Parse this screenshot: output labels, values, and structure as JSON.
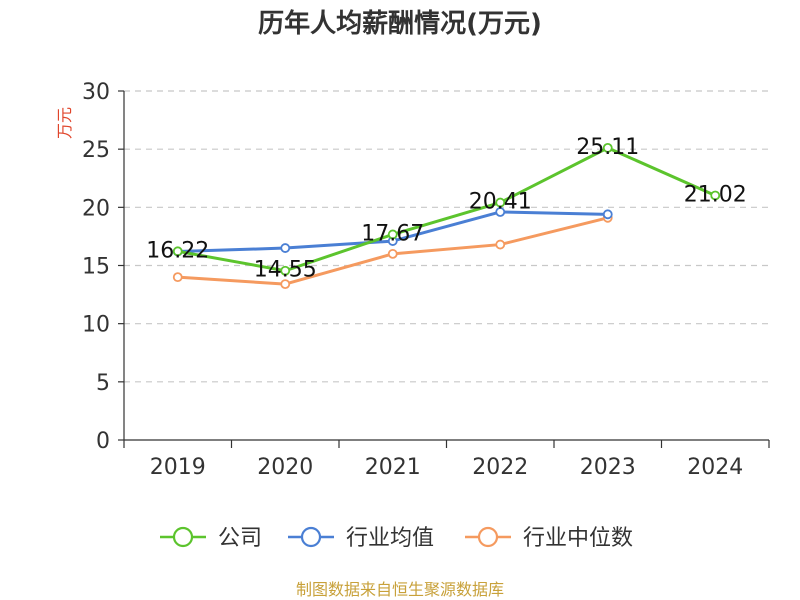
{
  "chart_data": {
    "type": "line",
    "title": "历年人均薪酬情况(万元)",
    "ylabel": "万元",
    "xlabel": "",
    "categories": [
      "2019",
      "2020",
      "2021",
      "2022",
      "2023",
      "2024"
    ],
    "ylim": [
      0,
      30
    ],
    "yticks": [
      0,
      5,
      10,
      15,
      20,
      25,
      30
    ],
    "grid": true,
    "legend_position": "bottom",
    "series": [
      {
        "name": "公司",
        "color": "#5cc42d",
        "values": [
          16.22,
          14.55,
          17.67,
          20.41,
          25.11,
          21.02
        ],
        "labels": [
          "16.22",
          "14.55",
          "17.67",
          "20.41",
          "25.11",
          "21.02"
        ]
      },
      {
        "name": "行业均值",
        "color": "#4a7fd4",
        "values": [
          16.2,
          16.5,
          17.1,
          19.6,
          19.4,
          null
        ]
      },
      {
        "name": "行业中位数",
        "color": "#f59a5f",
        "values": [
          14.0,
          13.4,
          16.0,
          16.8,
          19.1,
          null
        ]
      }
    ],
    "source": "制图数据来自恒生聚源数据库"
  }
}
